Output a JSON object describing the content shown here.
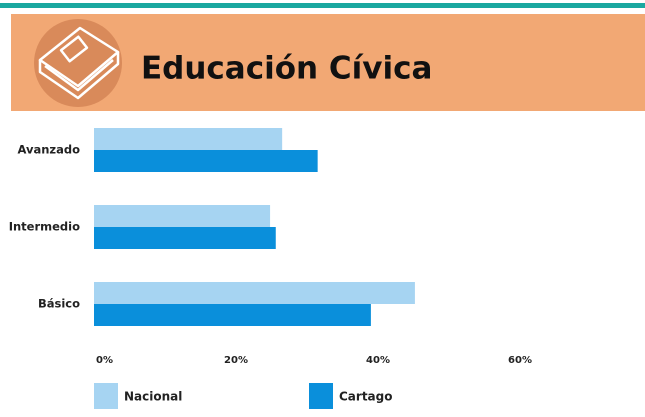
{
  "chart_data": {
    "type": "bar",
    "orientation": "horizontal",
    "title": "Educación Cívica",
    "categories": [
      "Avanzado",
      "Intermedio",
      "Básico"
    ],
    "series": [
      {
        "name": "Nacional",
        "color": "#a6d4f2",
        "values": [
          26.5,
          24.8,
          45.2
        ]
      },
      {
        "name": "Cartago",
        "color": "#0a8fdb",
        "values": [
          31.5,
          25.6,
          39.0
        ]
      }
    ],
    "xlim": [
      0,
      60
    ],
    "xticks": [
      {
        "value": 0,
        "label": "0%"
      },
      {
        "value": 20,
        "label": "20%"
      },
      {
        "value": 40,
        "label": "40%"
      },
      {
        "value": 60,
        "label": "60%"
      }
    ],
    "legend": "bottom"
  }
}
